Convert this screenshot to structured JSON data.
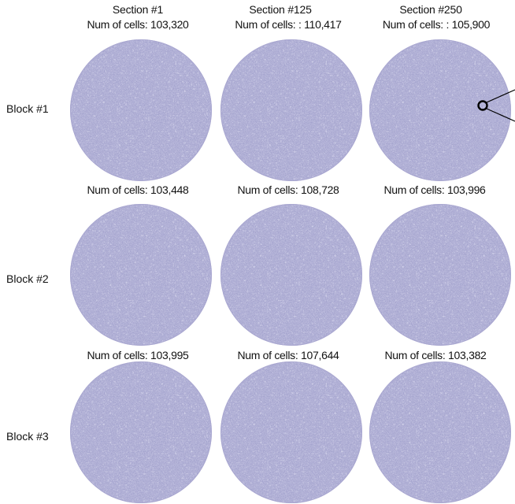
{
  "columns": [
    {
      "title": "Section #1"
    },
    {
      "title": "Section #125"
    },
    {
      "title": "Section #250"
    }
  ],
  "rows": [
    {
      "label": "Block #1",
      "cells": [
        {
          "count_text": "Num of cells: 103,320"
        },
        {
          "count_text": "Num of cells: : 110,417"
        },
        {
          "count_text": "Num of cells: : 105,900"
        }
      ]
    },
    {
      "label": "Block #2",
      "cells": [
        {
          "count_text": "Num of cells: 103,448"
        },
        {
          "count_text": "Num of cells: 108,728"
        },
        {
          "count_text": "Num of cells: 103,996"
        }
      ]
    },
    {
      "label": "Block #3",
      "cells": [
        {
          "count_text": "Num of cells: 103,995"
        },
        {
          "count_text": "Num of cells: 107,644"
        },
        {
          "count_text": "Num of cells: 103,382"
        }
      ]
    }
  ],
  "colors": {
    "tissue_fill": "#b9b8db",
    "tissue_edge": "#a9a7d0",
    "tissue_speckle_dark": "#6f6ea8",
    "tissue_speckle_light": "#d6d5ec",
    "text": "#111111",
    "marker": "#000000"
  },
  "callout": {
    "icon": "circle-marker-icon",
    "row": 0,
    "column": 2
  }
}
